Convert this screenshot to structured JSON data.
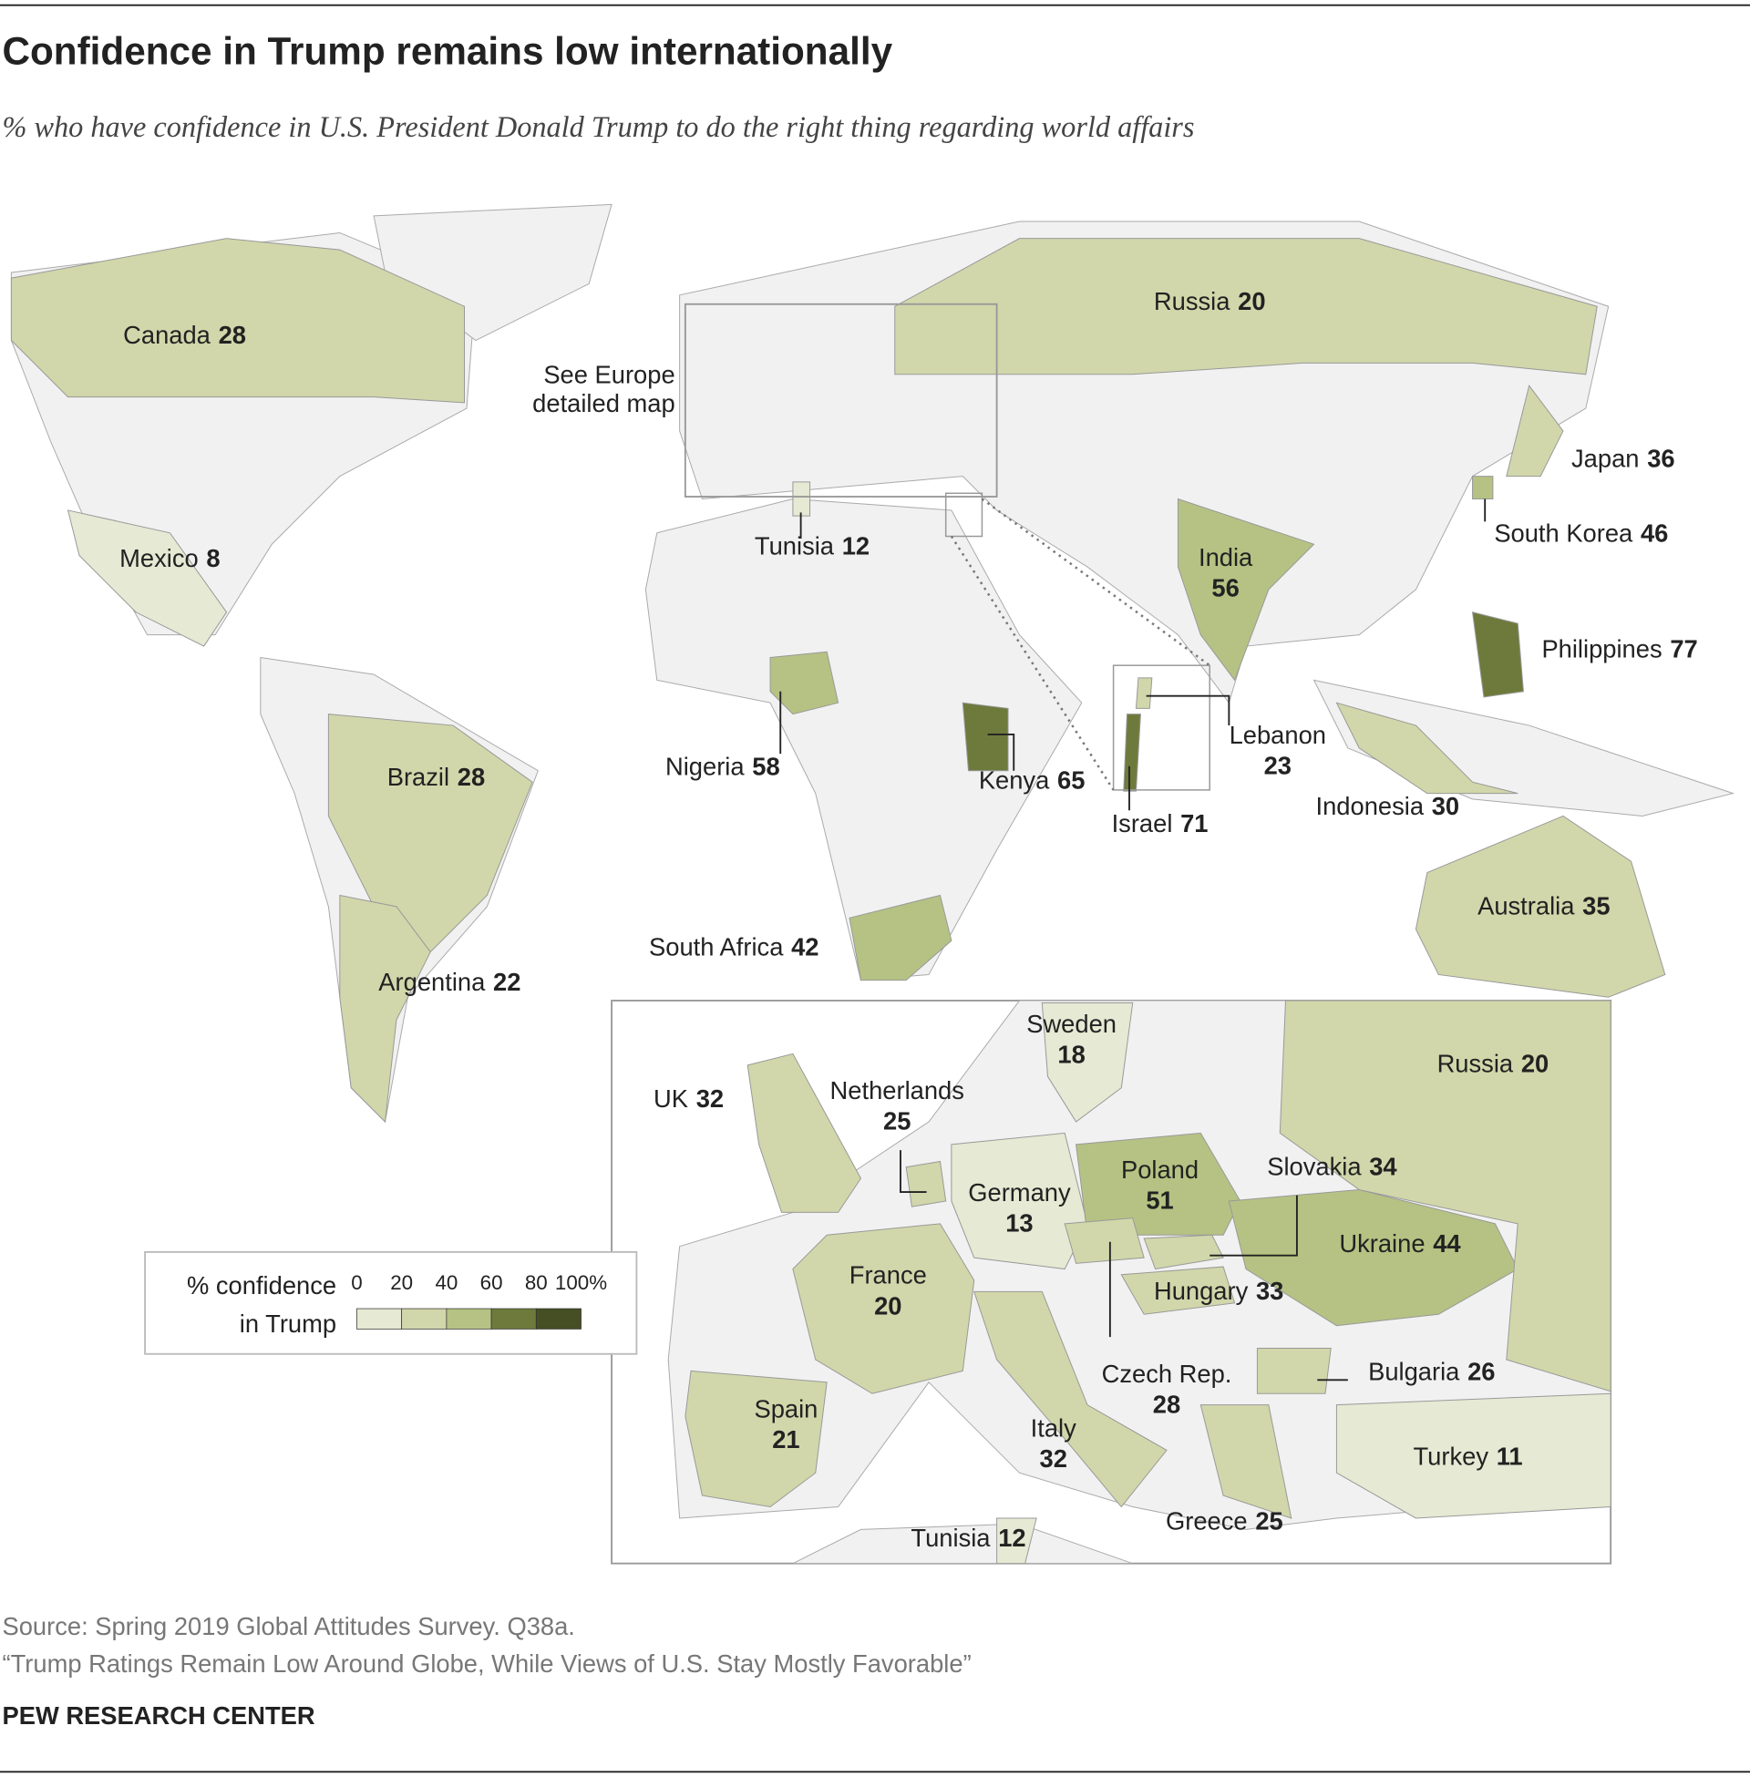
{
  "title": "Confidence in Trump remains low internationally",
  "subtitle": "% who have confidence in U.S. President Donald Trump to do the right thing regarding world affairs",
  "europe_note": [
    "See Europe",
    "detailed map"
  ],
  "legend": {
    "title": [
      "% confidence",
      "in Trump"
    ],
    "ticks": [
      0,
      20,
      40,
      60,
      80,
      {
        "value": 100,
        "label": "100%"
      }
    ],
    "colors": [
      "#e6e9d3",
      "#d1d7aa",
      "#b5c283",
      "#6e7a3b",
      "#464e23"
    ]
  },
  "world": [
    {
      "name": "Canada",
      "value": 28
    },
    {
      "name": "Mexico",
      "value": 8
    },
    {
      "name": "Brazil",
      "value": 28
    },
    {
      "name": "Argentina",
      "value": 22
    },
    {
      "name": "Russia",
      "value": 20
    },
    {
      "name": "Japan",
      "value": 36
    },
    {
      "name": "South Korea",
      "value": 46
    },
    {
      "name": "India",
      "value": 56
    },
    {
      "name": "Philippines",
      "value": 77
    },
    {
      "name": "Indonesia",
      "value": 30
    },
    {
      "name": "Australia",
      "value": 35
    },
    {
      "name": "Tunisia",
      "value": 12
    },
    {
      "name": "Nigeria",
      "value": 58
    },
    {
      "name": "Kenya",
      "value": 65
    },
    {
      "name": "South Africa",
      "value": 42
    },
    {
      "name": "Lebanon",
      "value": 23
    },
    {
      "name": "Israel",
      "value": 71
    }
  ],
  "europe": [
    {
      "name": "Sweden",
      "value": 18
    },
    {
      "name": "UK",
      "value": 32
    },
    {
      "name": "Netherlands",
      "value": 25
    },
    {
      "name": "Germany",
      "value": 13
    },
    {
      "name": "Poland",
      "value": 51
    },
    {
      "name": "Slovakia",
      "value": 34
    },
    {
      "name": "Ukraine",
      "value": 44
    },
    {
      "name": "Hungary",
      "value": 33
    },
    {
      "name": "France",
      "value": 20
    },
    {
      "name": "Czech Rep.",
      "value": 28
    },
    {
      "name": "Bulgaria",
      "value": 26
    },
    {
      "name": "Spain",
      "value": 21
    },
    {
      "name": "Italy",
      "value": 32
    },
    {
      "name": "Turkey",
      "value": 11
    },
    {
      "name": "Greece",
      "value": 25
    },
    {
      "name": "Tunisia",
      "value": 12
    },
    {
      "name": "Russia",
      "value": 20
    }
  ],
  "footer": {
    "source": "Source: Spring 2019 Global Attitudes Survey. Q38a.",
    "report": "“Trump Ratings Remain Low Around Globe, While Views of U.S. Stay Mostly Favorable”",
    "brand": "PEW RESEARCH CENTER"
  }
}
